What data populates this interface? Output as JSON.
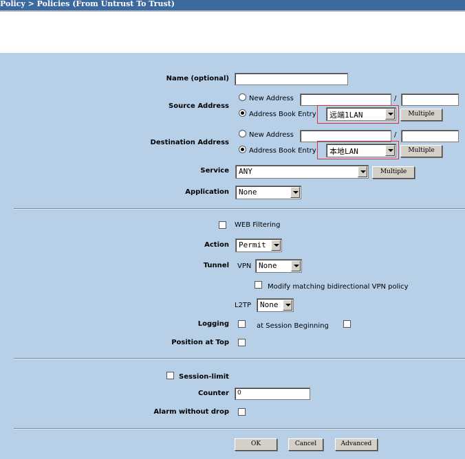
{
  "breadcrumb": "Policy > Policies (From Untrust To Trust)",
  "colors": {
    "panel": "#b8cfe8",
    "titlebar": "#3c6a9e",
    "highlight": "#e03030"
  },
  "form": {
    "name_label": "Name (optional)",
    "name_value": "",
    "source": {
      "label": "Source Address",
      "new_address_label": "New Address",
      "slash": "/",
      "address_book_label": "Address Book Entry",
      "address_book_value": "远端1LAN",
      "multiple_label": "Multiple"
    },
    "destination": {
      "label": "Destination Address",
      "new_address_label": "New Address",
      "slash": "/",
      "address_book_label": "Address Book Entry",
      "address_book_value": "本地LAN",
      "multiple_label": "Multiple"
    },
    "service": {
      "label": "Service",
      "value": "ANY",
      "multiple_label": "Multiple"
    },
    "application": {
      "label": "Application",
      "value": "None"
    },
    "web_filtering_label": "WEB Filtering",
    "action": {
      "label": "Action",
      "value": "Permit"
    },
    "tunnel": {
      "label": "Tunnel",
      "vpn_label": "VPN",
      "vpn_value": "None",
      "modify_label": "Modify matching bidirectional VPN policy",
      "l2tp_label": "L2TP",
      "l2tp_value": "None"
    },
    "logging": {
      "label": "Logging",
      "session_label": "at Session Beginning"
    },
    "position_top_label": "Position at Top",
    "session_limit_label": "Session-limit",
    "counter": {
      "label": "Counter",
      "value": "0"
    },
    "alarm_label": "Alarm without drop"
  },
  "buttons": {
    "ok": "OK",
    "cancel": "Cancel",
    "advanced": "Advanced"
  }
}
